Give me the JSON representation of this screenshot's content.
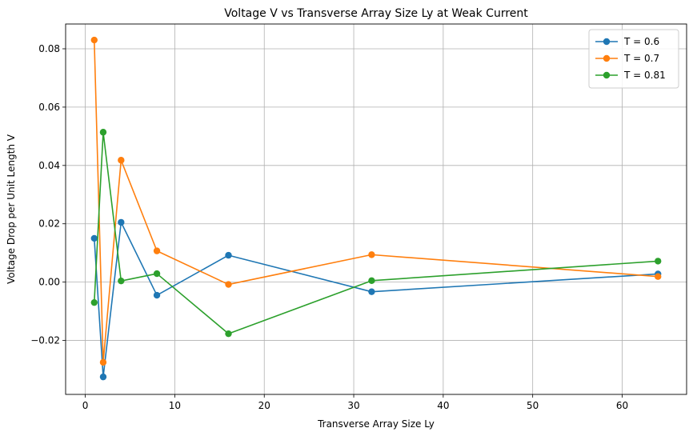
{
  "chart_data": {
    "type": "line",
    "title": "Voltage V vs Transverse Array Size Ly at Weak Current",
    "xlabel": "Transverse Array Size Ly",
    "ylabel": "Voltage Drop per Unit Length V",
    "xlim": [
      -2.2,
      67.2
    ],
    "ylim": [
      -0.0385,
      0.0885
    ],
    "xticks": [
      0,
      10,
      20,
      30,
      40,
      50,
      60
    ],
    "xtick_labels": [
      "0",
      "10",
      "20",
      "30",
      "40",
      "50",
      "60"
    ],
    "yticks": [
      -0.02,
      0.0,
      0.02,
      0.04,
      0.06,
      0.08
    ],
    "ytick_labels": [
      "−0.02",
      "0.00",
      "0.02",
      "0.04",
      "0.06",
      "0.08"
    ],
    "grid": true,
    "legend_position": "top-right",
    "x": [
      1,
      2,
      4,
      8,
      16,
      32,
      64
    ],
    "series": [
      {
        "name": "T = 0.6",
        "color": "#1f77b4",
        "values": [
          0.015,
          -0.0325,
          0.0205,
          -0.0045,
          0.0092,
          -0.0033,
          0.0028
        ]
      },
      {
        "name": "T = 0.7",
        "color": "#ff7f0e",
        "values": [
          0.083,
          -0.0275,
          0.0418,
          0.0107,
          -0.0008,
          0.0094,
          0.0019
        ]
      },
      {
        "name": "T = 0.81",
        "color": "#2ca02c",
        "values": [
          -0.007,
          0.0514,
          0.0004,
          0.0029,
          -0.0177,
          0.0005,
          0.0072
        ]
      }
    ]
  }
}
